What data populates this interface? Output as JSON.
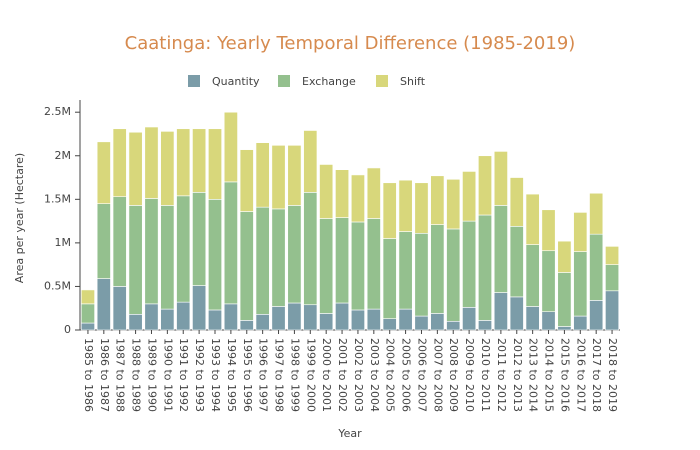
{
  "chart_data": {
    "type": "stacked_bar",
    "title": "Caatinga: Yearly Temporal Difference (1985-2019)",
    "x_label": "Year",
    "y_label": "Area per year (Hectare)",
    "categories": [
      "1985 to 1986",
      "1986 to 1987",
      "1987 to 1988",
      "1988 to 1989",
      "1989 to 1990",
      "1990 to 1991",
      "1991 to 1992",
      "1992 to 1993",
      "1993 to 1994",
      "1994 to 1995",
      "1995 to 1996",
      "1996 to 1997",
      "1997 to 1998",
      "1998 to 1999",
      "1999 to 2000",
      "2000 to 2001",
      "2001 to 2002",
      "2002 to 2003",
      "2003 to 2004",
      "2004 to 2005",
      "2005 to 2006",
      "2006 to 2007",
      "2007 to 2008",
      "2008 to 2009",
      "2009 to 2010",
      "2010 to 2011",
      "2011 to 2012",
      "2012 to 2013",
      "2013 to 2014",
      "2014 to 2015",
      "2015 to 2016",
      "2016 to 2017",
      "2017 to 2018",
      "2018 to 2019"
    ],
    "series": [
      {
        "name": "Quantity",
        "color": "#7b9ca8",
        "values": [
          80000,
          590000,
          500000,
          180000,
          300000,
          240000,
          320000,
          510000,
          230000,
          300000,
          110000,
          180000,
          270000,
          310000,
          290000,
          190000,
          310000,
          230000,
          240000,
          130000,
          240000,
          160000,
          190000,
          100000,
          260000,
          110000,
          430000,
          380000,
          270000,
          210000,
          40000,
          160000,
          340000,
          450000
        ]
      },
      {
        "name": "Exchange",
        "color": "#94c08e",
        "values": [
          220000,
          860000,
          1030000,
          1250000,
          1210000,
          1190000,
          1220000,
          1070000,
          1270000,
          1400000,
          1250000,
          1230000,
          1120000,
          1120000,
          1290000,
          1090000,
          980000,
          1010000,
          1040000,
          920000,
          890000,
          950000,
          1020000,
          1060000,
          990000,
          1210000,
          1000000,
          810000,
          710000,
          700000,
          620000,
          740000,
          760000,
          300000
        ]
      },
      {
        "name": "Shift",
        "color": "#d8d77b",
        "values": [
          160000,
          710000,
          780000,
          840000,
          820000,
          850000,
          770000,
          730000,
          810000,
          800000,
          710000,
          740000,
          730000,
          690000,
          710000,
          620000,
          550000,
          540000,
          580000,
          640000,
          590000,
          580000,
          560000,
          570000,
          570000,
          680000,
          620000,
          560000,
          580000,
          470000,
          360000,
          450000,
          470000,
          210000
        ]
      }
    ],
    "ylim": [
      0,
      2640000
    ],
    "yticks": [
      0,
      {
        "value": 500000,
        "label": "0.5M"
      },
      {
        "value": 1000000,
        "label": "1M"
      },
      {
        "value": 1500000,
        "label": "1.5M"
      },
      {
        "value": 2000000,
        "label": "2M"
      },
      {
        "value": 2500000,
        "label": "2.5M"
      }
    ],
    "grid": false,
    "legend": "top"
  }
}
